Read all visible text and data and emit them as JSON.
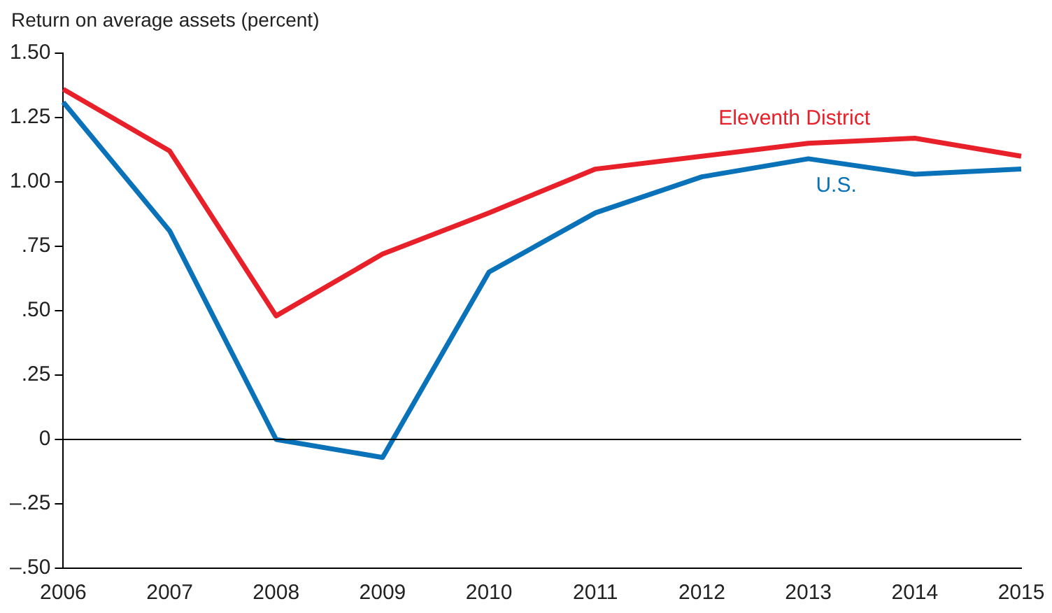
{
  "chart_data": {
    "type": "line",
    "ylabel": "Return on average assets (percent)",
    "categories": [
      "2006",
      "2007",
      "2008",
      "2009",
      "2010",
      "2011",
      "2012",
      "2013",
      "2014",
      "2015"
    ],
    "series": [
      {
        "name": "Eleventh District",
        "color": "#e8202a",
        "values": [
          1.36,
          1.12,
          0.48,
          0.72,
          0.88,
          1.05,
          1.1,
          1.15,
          1.17,
          1.1
        ]
      },
      {
        "name": "U.S.",
        "color": "#0a72b8",
        "values": [
          1.31,
          0.81,
          0.0,
          -0.07,
          0.65,
          0.88,
          1.02,
          1.09,
          1.03,
          1.05
        ]
      }
    ],
    "ylim": [
      -0.5,
      1.5
    ],
    "yticks": [
      {
        "value": 1.5,
        "label": "1.50"
      },
      {
        "value": 1.25,
        "label": "1.25"
      },
      {
        "value": 1,
        "label": "1.00"
      },
      {
        "value": 0.75,
        "label": ".75"
      },
      {
        "value": 0.5,
        "label": ".50"
      },
      {
        "value": 0.25,
        "label": ".25"
      },
      0,
      {
        "value": -0.25,
        "label": "–.25"
      },
      {
        "value": -0.5,
        "label": "–.50"
      }
    ],
    "ref_lines": [
      {
        "axis": "y",
        "value": 0,
        "color": "#000000"
      }
    ],
    "grid": false,
    "legend": false,
    "marker": "none",
    "line_style": "solid"
  }
}
